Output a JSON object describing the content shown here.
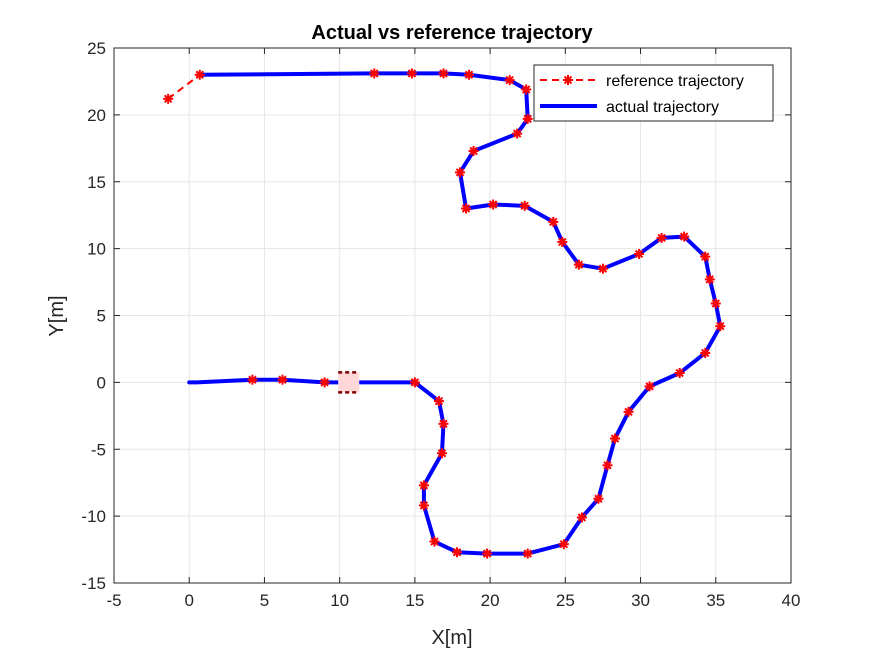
{
  "chart_data": {
    "type": "line",
    "title": "Actual vs reference trajectory",
    "xlabel": "X[m]",
    "ylabel": "Y[m]",
    "xlim": [
      -5,
      40
    ],
    "ylim": [
      -15,
      25
    ],
    "xticks": [
      -5,
      0,
      5,
      10,
      15,
      20,
      25,
      30,
      35,
      40
    ],
    "yticks": [
      -15,
      -10,
      -5,
      0,
      5,
      10,
      15,
      20,
      25
    ],
    "grid": true,
    "legend_position": "top-right",
    "colors": {
      "reference": "#ff0000",
      "actual": "#0000ff",
      "grid": "#e6e6e6",
      "vehicle": "#ffd7d7",
      "vehicle_edge": "#800000"
    },
    "series": [
      {
        "name": "reference trajectory",
        "style": "dashed-star",
        "x": [
          -1.4,
          0.7,
          12.3,
          14.8,
          16.9,
          18.6,
          21.3,
          22.4,
          22.5,
          21.8,
          18.9,
          18.0,
          18.4,
          20.2,
          22.3,
          24.2,
          24.8,
          25.9,
          27.5,
          29.9,
          31.4,
          32.9,
          34.3,
          34.6,
          35.0,
          35.3,
          34.3,
          32.6,
          30.6,
          29.2,
          28.3,
          27.8,
          27.2,
          26.1,
          24.9,
          22.5,
          19.8,
          17.8,
          16.3,
          15.6,
          15.6,
          16.8,
          16.9,
          16.6,
          15.0,
          9.0,
          6.2,
          4.2
        ],
        "y": [
          21.2,
          23.0,
          23.1,
          23.1,
          23.1,
          23.0,
          22.6,
          21.9,
          19.7,
          18.6,
          17.3,
          15.7,
          13.0,
          13.3,
          13.2,
          12.0,
          10.5,
          8.8,
          8.5,
          9.6,
          10.8,
          10.9,
          9.4,
          7.7,
          5.9,
          4.2,
          2.2,
          0.7,
          -0.3,
          -2.2,
          -4.2,
          -6.2,
          -8.7,
          -10.1,
          -12.1,
          -12.8,
          -12.8,
          -12.7,
          -11.9,
          -9.2,
          -7.7,
          -5.3,
          -3.1,
          -1.4,
          0.0,
          0.0,
          0.2,
          0.2
        ]
      },
      {
        "name": "actual trajectory",
        "style": "solid",
        "x": [
          0.0,
          0.5,
          4.2,
          6.2,
          9.0,
          10.2,
          11.5,
          15.0,
          16.6,
          16.9,
          16.8,
          15.6,
          15.6,
          16.3,
          17.8,
          19.8,
          22.5,
          24.9,
          26.1,
          27.2,
          27.8,
          28.3,
          29.2,
          30.6,
          32.6,
          34.3,
          35.3,
          35.0,
          34.6,
          34.3,
          32.9,
          31.4,
          29.9,
          27.5,
          25.9,
          24.8,
          24.2,
          22.3,
          20.2,
          18.4,
          18.0,
          18.9,
          21.8,
          22.5,
          22.4,
          21.3,
          18.6,
          16.9,
          14.8,
          12.3,
          0.7
        ],
        "y": [
          0.0,
          0.0,
          0.2,
          0.2,
          0.0,
          0.0,
          0.0,
          0.0,
          -1.4,
          -3.1,
          -5.3,
          -7.7,
          -9.2,
          -11.9,
          -12.7,
          -12.8,
          -12.8,
          -12.1,
          -10.1,
          -8.7,
          -6.2,
          -4.2,
          -2.2,
          -0.3,
          0.7,
          2.2,
          4.2,
          5.9,
          7.7,
          9.4,
          10.9,
          10.8,
          9.6,
          8.5,
          8.8,
          10.5,
          12.0,
          13.2,
          13.3,
          13.0,
          15.7,
          17.3,
          18.6,
          19.7,
          21.9,
          22.6,
          23.0,
          23.1,
          23.1,
          23.1,
          23.0
        ]
      }
    ],
    "vehicle": {
      "x": 10.6,
      "y": 0.0,
      "length": 1.4,
      "width": 1.5
    }
  }
}
